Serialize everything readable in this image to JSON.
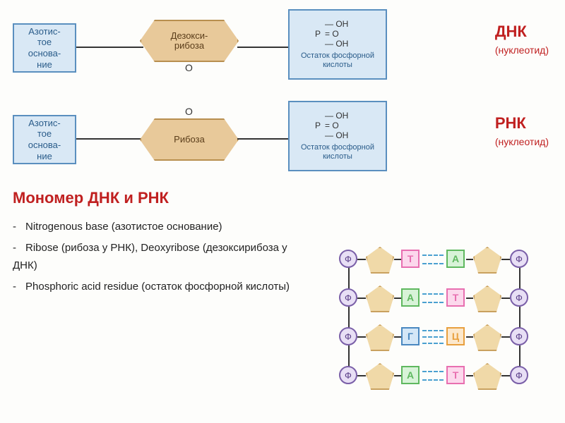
{
  "dna_row": {
    "base": "Азотис-\nтое\nоснова-\nние",
    "sugar": "Дезокси-\nрибоза",
    "o_pos": "bottom",
    "phosphate_caption": "Остаток фосфорной кислоты",
    "side_title": "ДНК",
    "side_sub": "(нуклеотид)"
  },
  "rna_row": {
    "base": "Азотис-\nтое\nоснова-\nние",
    "sugar": "Рибоза",
    "o_pos": "top",
    "phosphate_caption": "Остаток фосфорной кислоты",
    "side_title": "РНК",
    "side_sub": "(нуклеотид)"
  },
  "phosphate_formula": {
    "top": "OH",
    "mid": "O",
    "bot": "OH",
    "atom": "P"
  },
  "section_title": "Мономер ДНК и РНК",
  "bullets": {
    "b1": "Nitrogenous base (азотистое основание)",
    "b2": "Ribose (рибоза у РНК), Deoxyribose (дезоксирибоза у ДНК)",
    "b3": "Phosphoric acid residue (остаток фосфорной кислоты)"
  },
  "pairs": [
    {
      "l": "Т",
      "lcol": "#e86fb0",
      "lbg": "#fcd8ec",
      "r": "А",
      "rcol": "#5fb85f",
      "rbg": "#d8f3d8",
      "bonds": 2
    },
    {
      "l": "А",
      "lcol": "#5fb85f",
      "lbg": "#d8f3d8",
      "r": "Т",
      "rcol": "#e86fb0",
      "rbg": "#fcd8ec",
      "bonds": 2
    },
    {
      "l": "Г",
      "lcol": "#4a88c0",
      "lbg": "#d4e7f7",
      "r": "Ц",
      "rcol": "#e8a03f",
      "rbg": "#fce8cc",
      "bonds": 3
    },
    {
      "l": "А",
      "lcol": "#5fb85f",
      "lbg": "#d8f3d8",
      "r": "Т",
      "rcol": "#e86fb0",
      "rbg": "#fcd8ec",
      "bonds": 2
    }
  ],
  "phi_label": "Ф"
}
